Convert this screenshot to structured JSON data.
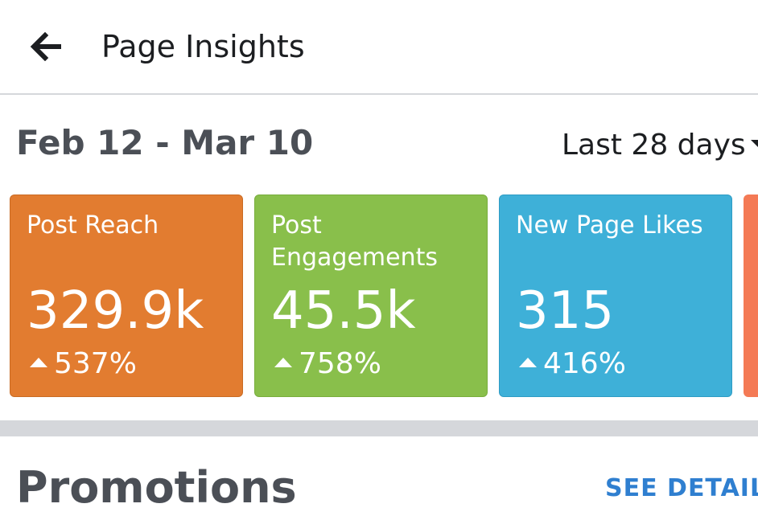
{
  "header": {
    "back_icon": "arrow-left-icon",
    "title": "Page Insights"
  },
  "summary": {
    "date_range": "Feb 12 - Mar 10",
    "period_label": "Last 28 days",
    "period_icon": "caret-down-icon"
  },
  "metrics": [
    {
      "label": "Post Reach",
      "value": "329.9k",
      "change": "537%",
      "trend_icon": "triangle-up-icon",
      "color": "#e27c30"
    },
    {
      "label": "Post\nEngagements",
      "value": "45.5k",
      "change": "758%",
      "trend_icon": "triangle-up-icon",
      "color": "#89bf4b"
    },
    {
      "label": "New Page Likes",
      "value": "315",
      "change": "416%",
      "trend_icon": "triangle-up-icon",
      "color": "#3eb0d8"
    }
  ],
  "promotions": {
    "title": "Promotions",
    "see_details_label": "SEE DETAILS"
  }
}
